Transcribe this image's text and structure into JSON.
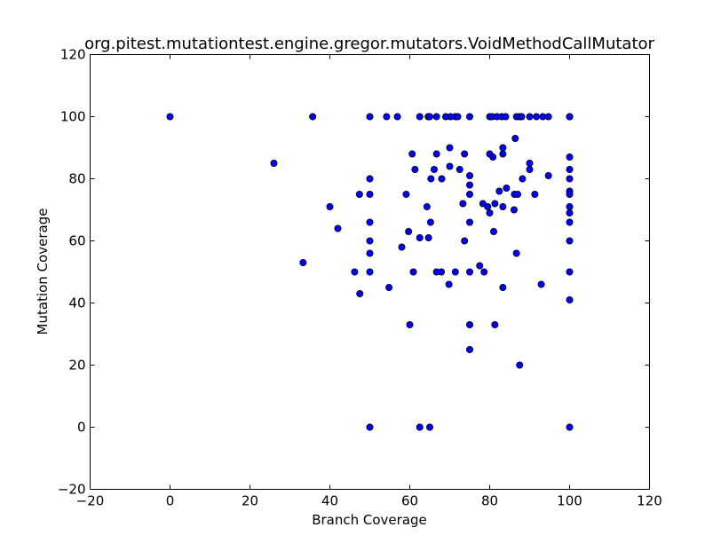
{
  "chart_data": {
    "type": "scatter",
    "title": "org.pitest.mutationtest.engine.gregor.mutators.VoidMethodCallMutator",
    "xlabel": "Branch Coverage",
    "ylabel": "Mutation Coverage",
    "xlim": [
      -20,
      120
    ],
    "ylim": [
      -20,
      120
    ],
    "xticks": [
      -20,
      0,
      20,
      40,
      60,
      80,
      100,
      120
    ],
    "yticks": [
      -20,
      0,
      20,
      40,
      60,
      80,
      100,
      120
    ],
    "xtick_labels": [
      "−20",
      "0",
      "20",
      "40",
      "60",
      "80",
      "100",
      "120"
    ],
    "ytick_labels": [
      "−20",
      "0",
      "20",
      "40",
      "60",
      "80",
      "100",
      "120"
    ],
    "grid": false,
    "marker_color": "#0000ff",
    "marker_edge_color": "#000000",
    "points": [
      {
        "x": 0,
        "y": 100
      },
      {
        "x": 26,
        "y": 85
      },
      {
        "x": 33.3,
        "y": 53
      },
      {
        "x": 35.7,
        "y": 100
      },
      {
        "x": 40,
        "y": 71
      },
      {
        "x": 42,
        "y": 64
      },
      {
        "x": 46.2,
        "y": 50
      },
      {
        "x": 47.4,
        "y": 75
      },
      {
        "x": 47.5,
        "y": 43
      },
      {
        "x": 50,
        "y": 100
      },
      {
        "x": 50,
        "y": 80
      },
      {
        "x": 50,
        "y": 75
      },
      {
        "x": 50,
        "y": 66
      },
      {
        "x": 50,
        "y": 60
      },
      {
        "x": 50,
        "y": 56
      },
      {
        "x": 50,
        "y": 50
      },
      {
        "x": 50,
        "y": 0
      },
      {
        "x": 54.2,
        "y": 100
      },
      {
        "x": 54.8,
        "y": 45
      },
      {
        "x": 56.9,
        "y": 100
      },
      {
        "x": 58,
        "y": 58
      },
      {
        "x": 59.1,
        "y": 75
      },
      {
        "x": 59.7,
        "y": 63
      },
      {
        "x": 60,
        "y": 33
      },
      {
        "x": 60.6,
        "y": 88
      },
      {
        "x": 60.9,
        "y": 50
      },
      {
        "x": 61.3,
        "y": 83
      },
      {
        "x": 62.5,
        "y": 100
      },
      {
        "x": 62.5,
        "y": 61
      },
      {
        "x": 62.5,
        "y": 0
      },
      {
        "x": 64.3,
        "y": 71
      },
      {
        "x": 64.6,
        "y": 100
      },
      {
        "x": 64.7,
        "y": 61
      },
      {
        "x": 65,
        "y": 100
      },
      {
        "x": 65.2,
        "y": 66
      },
      {
        "x": 65.3,
        "y": 80
      },
      {
        "x": 65,
        "y": 0
      },
      {
        "x": 66.1,
        "y": 83
      },
      {
        "x": 66.7,
        "y": 88
      },
      {
        "x": 66.7,
        "y": 50
      },
      {
        "x": 66.7,
        "y": 100
      },
      {
        "x": 67.9,
        "y": 50
      },
      {
        "x": 68,
        "y": 80
      },
      {
        "x": 69,
        "y": 100
      },
      {
        "x": 69.8,
        "y": 46
      },
      {
        "x": 70,
        "y": 90
      },
      {
        "x": 70,
        "y": 84
      },
      {
        "x": 70.2,
        "y": 100
      },
      {
        "x": 71.4,
        "y": 100
      },
      {
        "x": 71.4,
        "y": 50
      },
      {
        "x": 72,
        "y": 100
      },
      {
        "x": 72.5,
        "y": 83
      },
      {
        "x": 73.3,
        "y": 72
      },
      {
        "x": 73.7,
        "y": 88
      },
      {
        "x": 73.7,
        "y": 60
      },
      {
        "x": 75,
        "y": 100
      },
      {
        "x": 75,
        "y": 81
      },
      {
        "x": 75,
        "y": 78
      },
      {
        "x": 75,
        "y": 75
      },
      {
        "x": 75,
        "y": 66
      },
      {
        "x": 75,
        "y": 50
      },
      {
        "x": 75,
        "y": 33
      },
      {
        "x": 75,
        "y": 25
      },
      {
        "x": 77.5,
        "y": 52
      },
      {
        "x": 78.3,
        "y": 72
      },
      {
        "x": 78.6,
        "y": 50
      },
      {
        "x": 79.5,
        "y": 71
      },
      {
        "x": 80,
        "y": 100
      },
      {
        "x": 80,
        "y": 88
      },
      {
        "x": 80,
        "y": 69
      },
      {
        "x": 80.6,
        "y": 100
      },
      {
        "x": 80.8,
        "y": 87
      },
      {
        "x": 81,
        "y": 63
      },
      {
        "x": 81.3,
        "y": 72
      },
      {
        "x": 81.3,
        "y": 33
      },
      {
        "x": 81.8,
        "y": 100
      },
      {
        "x": 82.4,
        "y": 76
      },
      {
        "x": 83,
        "y": 100
      },
      {
        "x": 83.3,
        "y": 90
      },
      {
        "x": 83.3,
        "y": 88
      },
      {
        "x": 83.3,
        "y": 71
      },
      {
        "x": 83.3,
        "y": 45
      },
      {
        "x": 84,
        "y": 100
      },
      {
        "x": 84.2,
        "y": 77
      },
      {
        "x": 86.1,
        "y": 70
      },
      {
        "x": 86.2,
        "y": 75
      },
      {
        "x": 86.4,
        "y": 93
      },
      {
        "x": 86.7,
        "y": 100
      },
      {
        "x": 86.7,
        "y": 56
      },
      {
        "x": 87,
        "y": 75
      },
      {
        "x": 87.5,
        "y": 100
      },
      {
        "x": 87.5,
        "y": 20
      },
      {
        "x": 88,
        "y": 100
      },
      {
        "x": 88.2,
        "y": 80
      },
      {
        "x": 90,
        "y": 100
      },
      {
        "x": 90,
        "y": 85
      },
      {
        "x": 90,
        "y": 83
      },
      {
        "x": 91.3,
        "y": 75
      },
      {
        "x": 91.7,
        "y": 100
      },
      {
        "x": 92.9,
        "y": 46
      },
      {
        "x": 93.3,
        "y": 100
      },
      {
        "x": 94.7,
        "y": 100
      },
      {
        "x": 94.7,
        "y": 81
      },
      {
        "x": 100,
        "y": 100
      },
      {
        "x": 100,
        "y": 100
      },
      {
        "x": 100,
        "y": 87
      },
      {
        "x": 100,
        "y": 83
      },
      {
        "x": 100,
        "y": 80
      },
      {
        "x": 100,
        "y": 76
      },
      {
        "x": 100,
        "y": 75
      },
      {
        "x": 100,
        "y": 71
      },
      {
        "x": 100,
        "y": 69
      },
      {
        "x": 100,
        "y": 66
      },
      {
        "x": 100,
        "y": 60
      },
      {
        "x": 100,
        "y": 50
      },
      {
        "x": 100,
        "y": 41
      },
      {
        "x": 100,
        "y": 0
      }
    ]
  }
}
